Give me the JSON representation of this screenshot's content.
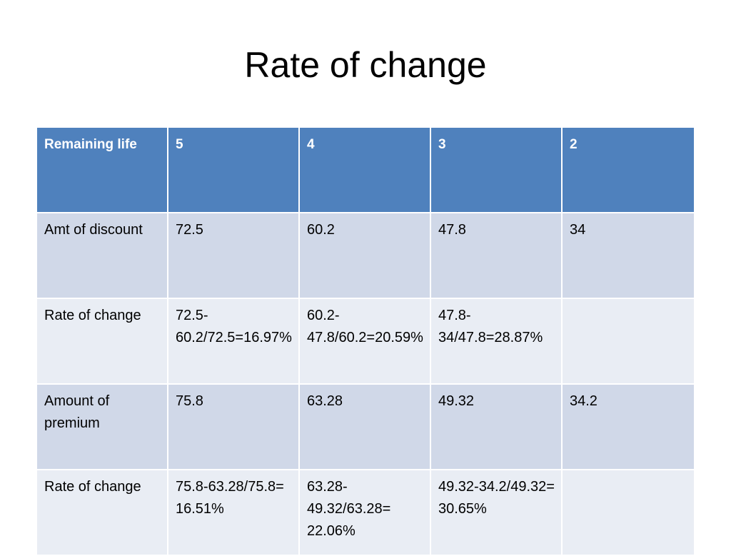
{
  "title": "Rate of change",
  "table": {
    "header": [
      "Remaining life",
      "5",
      "4",
      "3",
      "2"
    ],
    "rows": [
      [
        "Amt of discount",
        "72.5",
        "60.2",
        "47.8",
        "34"
      ],
      [
        "Rate of change",
        "72.5-60.2/72.5=16.97%",
        "60.2-47.8/60.2=20.59%",
        "47.8-34/47.8=28.87%",
        null
      ],
      [
        "Amount of premium",
        "75.8",
        "63.28",
        "49.32",
        "34.2"
      ],
      [
        "Rate of change",
        "75.8-63.28/75.8= 16.51%",
        "63.28-49.32/63.28= 22.06%",
        "49.32-34.2/49.32= 30.65%",
        null
      ]
    ]
  }
}
